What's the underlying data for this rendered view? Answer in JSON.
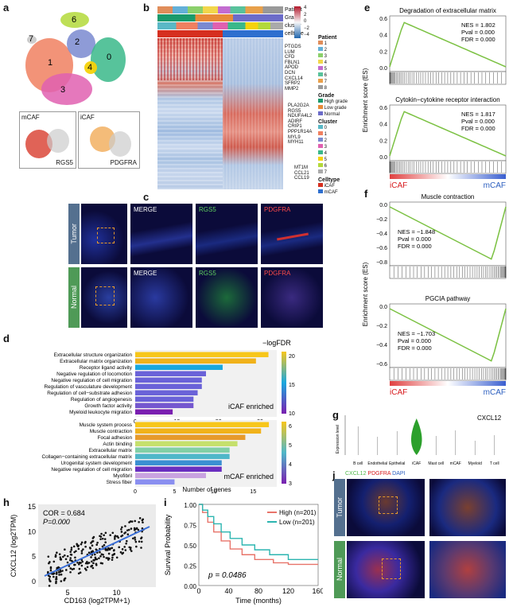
{
  "labels": {
    "a": "a",
    "b": "b",
    "c": "c",
    "d": "d",
    "e": "e",
    "f": "f",
    "g": "g",
    "h": "h",
    "i": "i",
    "j": "j"
  },
  "panel_a": {
    "clusters": [
      "0",
      "1",
      "2",
      "3",
      "4",
      "5",
      "6",
      "7"
    ],
    "mcaf": "mCAF",
    "icaf": "iCAF",
    "gene_left": "RGS5",
    "gene_right": "PDGFRA"
  },
  "panel_b": {
    "rows": [
      "Patient",
      "Grade",
      "cluster",
      "celltype"
    ],
    "scale": [
      "4",
      "2",
      "0",
      "−2",
      "−4"
    ],
    "genes_top": [
      "PTGDS",
      "LUM",
      "CFD",
      "FBLN1",
      "APOD",
      "DCN",
      "CXCL14",
      "SFRP2",
      "MMP2"
    ],
    "genes_mid": [
      "PLA2G2A",
      "RGS5",
      "NDUFA4L2",
      "ADIRF",
      "CRIP1",
      "PPP1R14A",
      "MYL9",
      "MYH11"
    ],
    "genes_bot": [
      "MT1M",
      "CCL21",
      "CCL19"
    ],
    "legend_patient_title": "Patient",
    "legend_patient": [
      "1",
      "2",
      "3",
      "4",
      "5",
      "6",
      "7",
      "8"
    ],
    "legend_grade_title": "Grade",
    "legend_grade": [
      "High grade",
      "Low grade",
      "Normal"
    ],
    "legend_cluster_title": "Cluster",
    "legend_cluster": [
      "0",
      "1",
      "2",
      "3",
      "4",
      "5",
      "6",
      "7"
    ],
    "legend_celltype_title": "Celltype",
    "legend_celltype": [
      "iCAF",
      "mCAF"
    ]
  },
  "panel_c": {
    "rows": [
      "Tumor",
      "Normal"
    ],
    "channels": [
      "MERGE",
      "RGS5",
      "PDGFRA"
    ]
  },
  "panel_d": {
    "title": "−logFDR",
    "top_terms": [
      "Extracellular structure organization",
      "Extracellular matrix organization",
      "Receptor ligand activity",
      "Negative regulation of locomotion",
      "Negative regulation of cell migration",
      "Regulation of vasculature development",
      "Regulation of cell−substrate adhesion",
      "Regulation of angiogenesis",
      "Growth factor activity",
      "Myeloid leukocyte migration"
    ],
    "top_counts": [
      32,
      29,
      21,
      17,
      16,
      16,
      15,
      14,
      14,
      9
    ],
    "top_colors": [
      "#f7c61b",
      "#f1b21a",
      "#1aa8de",
      "#6a62d8",
      "#6a62d8",
      "#6a62d8",
      "#6a62d8",
      "#6a62d8",
      "#7457cf",
      "#7a1fb0"
    ],
    "top_label": "iCAF enriched",
    "top_scale": [
      "20",
      "15",
      "10"
    ],
    "top_ticks": [
      "0",
      "10",
      "20",
      "30"
    ],
    "bottom_terms": [
      "Muscle system process",
      "Muscle contraction",
      "Focal adhesion",
      "Actin binding",
      "Extracellular matrix",
      "Collagen−containing extracellular matrix",
      "Urogenital system development",
      "Negative regulation of cell migration",
      "Myofibril",
      "Stress fiber"
    ],
    "bottom_counts": [
      17,
      16,
      14,
      13,
      12,
      12,
      11,
      11,
      9,
      5
    ],
    "bottom_colors": [
      "#f7c61b",
      "#f1b21a",
      "#e79a2c",
      "#c5e06c",
      "#82cfa6",
      "#4fb7c9",
      "#3b8fd2",
      "#6a2fc0",
      "#c9a3e0",
      "#8a8ff0"
    ],
    "bottom_label": "mCAF enriched",
    "bottom_scale": [
      "6",
      "5",
      "4",
      "3"
    ],
    "bottom_ticks": [
      "0",
      "5",
      "10",
      "15"
    ],
    "xlabel": "Number of genes"
  },
  "panel_e": {
    "ylabel": "Enrichment score (ES)",
    "plots": [
      {
        "title": "Degradation of extracellular matrix",
        "nes": "NES = 1.802",
        "pval": "Pval = 0.000",
        "fdr": "FDR = 0.000",
        "yticks": [
          "0.6",
          "0.4",
          "0.2",
          "0.0"
        ]
      },
      {
        "title": "Cytokin−cytokine receptor interaction",
        "nes": "NES = 1.817",
        "pval": "Pval = 0.000",
        "fdr": "FDR = 0.000",
        "yticks": [
          "0.6",
          "0.4",
          "0.2",
          "0.0"
        ]
      }
    ],
    "left": "iCAF",
    "right": "mCAF"
  },
  "panel_f": {
    "ylabel": "Enrichment score (ES)",
    "plots": [
      {
        "title": "Muscle contraction",
        "nes": "NES = −1.848",
        "pval": "Pval = 0.000",
        "fdr": "FDR = 0.000",
        "yticks": [
          "0.0",
          "−0.2",
          "−0.4",
          "−0.6",
          "−0.8"
        ]
      },
      {
        "title": "PGCIA pathway",
        "nes": "NES = −1.703",
        "pval": "Pval = 0.000",
        "fdr": "FDR = 0.000",
        "yticks": [
          "0.0",
          "−0.2",
          "−0.4",
          "−0.6"
        ]
      }
    ],
    "left": "iCAF",
    "right": "mCAF"
  },
  "panel_g": {
    "gene": "CXCL12",
    "ylabel": "Expression level",
    "cells": [
      "B cell",
      "Endothelial",
      "Epithelial",
      "iCAF",
      "Mast cell",
      "mCAF",
      "Myeloid",
      "T cell"
    ]
  },
  "panel_h": {
    "cor": "COR = 0.684",
    "p": "P=0.000",
    "xlabel": "CD163 (log2TPM+1)",
    "ylabel": "CXCL12 (log2TPM)",
    "xticks": [
      "5",
      "10"
    ],
    "yticks": [
      "15",
      "10",
      "5",
      "0"
    ]
  },
  "panel_i": {
    "legend": [
      "High (n=201)",
      "Low (n=201)"
    ],
    "p": "p = 0.0486",
    "xlabel": "Time (months)",
    "ylabel": "Survival Probability",
    "xticks": [
      "0",
      "40",
      "80",
      "120",
      "160"
    ],
    "yticks": [
      "1.00",
      "0.75",
      "0.50",
      "0.25",
      "0.00"
    ]
  },
  "panel_j": {
    "legend": [
      "CXCL12",
      "PDGFRA",
      "DAPI"
    ],
    "rows": [
      "Tumor",
      "Normal"
    ]
  },
  "colors": {
    "green": "#7bc142",
    "red": "#d7191c",
    "blue": "#2b5ebf",
    "teal": "#2cb5b0",
    "salmon": "#e8746a"
  }
}
